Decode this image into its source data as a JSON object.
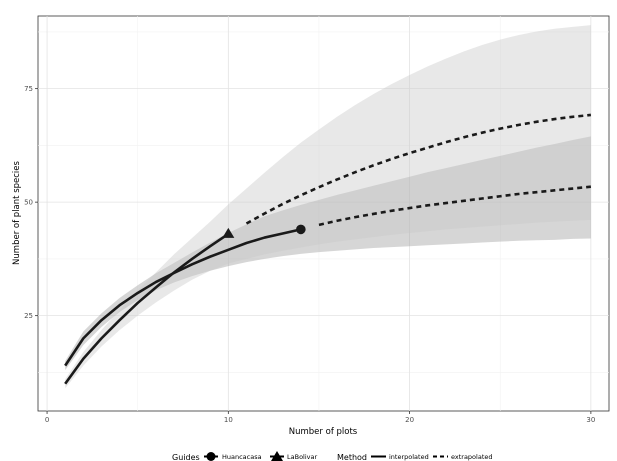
{
  "chart_data": {
    "type": "line",
    "xlabel": "Number of plots",
    "ylabel": "Number of plant species",
    "xlim": [
      -0.5,
      31
    ],
    "ylim": [
      4,
      91
    ],
    "x_ticks": [
      0,
      10,
      20,
      30
    ],
    "y_ticks": [
      25,
      50,
      75
    ],
    "grid": true,
    "legend_position": "bottom",
    "legend": {
      "guides_title": "Guides",
      "method_title": "Method",
      "guides": [
        {
          "label": "Huancacasa",
          "shape": "circle"
        },
        {
          "label": "LaBolivar",
          "shape": "triangle"
        }
      ],
      "methods": [
        {
          "label": "interpolated",
          "linetype": "solid"
        },
        {
          "label": "extrapolated",
          "linetype": "dashed"
        }
      ]
    },
    "series": [
      {
        "name": "Huancacasa",
        "shape": "circle",
        "observed": {
          "x": 14,
          "y": 44
        },
        "interpolated": {
          "x": [
            1,
            2,
            3,
            4,
            5,
            6,
            7,
            8,
            9,
            10,
            11,
            12,
            13,
            14
          ],
          "y": [
            14,
            20,
            24,
            27.3,
            30,
            32.4,
            34.4,
            36.3,
            38,
            39.5,
            41,
            42.2,
            43.1,
            44
          ]
        },
        "interpolated_ci": {
          "lower": [
            13,
            18.5,
            22.5,
            25.8,
            28.4,
            30.6,
            32.3,
            33.7,
            34.9,
            35.9,
            36.8,
            37.5,
            38.1,
            38.6
          ],
          "upper": [
            15,
            21.5,
            25.5,
            28.9,
            31.7,
            34.3,
            36.6,
            38.9,
            41.1,
            43.2,
            45.1,
            46.9,
            48.2,
            49.4
          ]
        },
        "extrapolated": {
          "x": [
            15,
            16,
            17,
            18,
            19,
            20,
            21,
            22,
            23,
            24,
            25,
            26,
            27,
            28,
            29,
            30
          ],
          "y": [
            45,
            45.9,
            46.7,
            47.4,
            48.1,
            48.7,
            49.3,
            49.8,
            50.3,
            50.8,
            51.3,
            51.8,
            52.2,
            52.6,
            53,
            53.4
          ]
        },
        "extrapolated_ci": {
          "lower": [
            39,
            39.3,
            39.6,
            39.9,
            40.1,
            40.3,
            40.5,
            40.7,
            40.9,
            41.1,
            41.3,
            41.5,
            41.6,
            41.7,
            41.9,
            42
          ],
          "upper": [
            50.5,
            51.6,
            52.6,
            53.6,
            54.6,
            55.6,
            56.6,
            57.5,
            58.4,
            59.3,
            60.2,
            61.1,
            62,
            62.8,
            63.7,
            64.5
          ]
        }
      },
      {
        "name": "LaBolivar",
        "shape": "triangle",
        "observed": {
          "x": 10,
          "y": 43
        },
        "interpolated": {
          "x": [
            1,
            2,
            3,
            4,
            5,
            6,
            7,
            8,
            9,
            10
          ],
          "y": [
            10,
            15.5,
            20,
            24,
            27.8,
            31.2,
            34.5,
            37.5,
            40.3,
            43
          ]
        },
        "interpolated_ci": {
          "lower": [
            9,
            14,
            18.2,
            21.8,
            25,
            27.9,
            30.5,
            32.9,
            34.9,
            36.5
          ],
          "upper": [
            11,
            17,
            21.8,
            26.2,
            30.6,
            34.5,
            38.5,
            42.1,
            45.7,
            49.5
          ]
        },
        "extrapolated": {
          "x": [
            11,
            12,
            13,
            14,
            15,
            16,
            17,
            18,
            19,
            20,
            21,
            22,
            23,
            24,
            25,
            26,
            27,
            28,
            29,
            30
          ],
          "y": [
            45.3,
            47.5,
            49.6,
            51.5,
            53.3,
            55,
            56.6,
            58.1,
            59.5,
            60.8,
            62,
            63.2,
            64.3,
            65.3,
            66.2,
            67,
            67.7,
            68.3,
            68.8,
            69.2
          ]
        },
        "extrapolated_ci": {
          "lower": [
            37.5,
            38.5,
            39.3,
            40,
            40.7,
            41.3,
            41.8,
            42.3,
            42.8,
            43.2,
            43.6,
            44,
            44.3,
            44.6,
            44.9,
            45.2,
            45.5,
            45.7,
            45.9,
            46.1
          ],
          "upper": [
            53,
            56.5,
            59.9,
            63.1,
            66,
            68.8,
            71.4,
            73.8,
            76,
            78,
            79.9,
            81.6,
            83.2,
            84.6,
            85.8,
            86.8,
            87.6,
            88.2,
            88.6,
            89
          ]
        }
      }
    ]
  }
}
